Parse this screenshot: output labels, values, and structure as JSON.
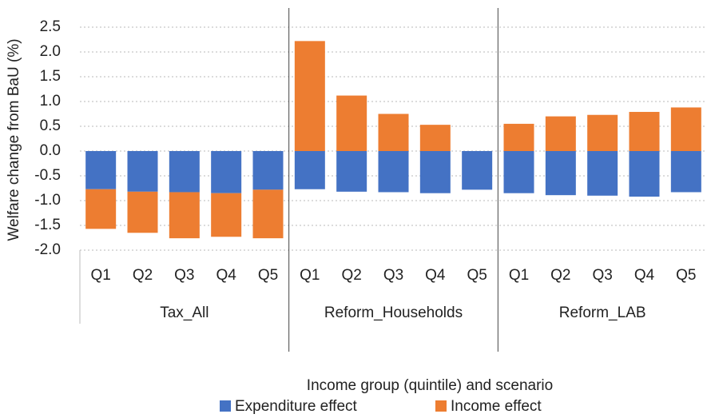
{
  "chart_data": {
    "type": "stacked-bar",
    "y_label": "Welfare change  from BaU (%)",
    "x_label": "Income group (quintile) and scenario",
    "groups": [
      {
        "name": "Tax_All",
        "categories": [
          "Q1",
          "Q2",
          "Q3",
          "Q4",
          "Q5"
        ]
      },
      {
        "name": "Reform_Households",
        "categories": [
          "Q1",
          "Q2",
          "Q3",
          "Q4",
          "Q5"
        ]
      },
      {
        "name": "Reform_LAB",
        "categories": [
          "Q1",
          "Q2",
          "Q3",
          "Q4",
          "Q5"
        ]
      }
    ],
    "series": [
      {
        "name": "Expenditure effect",
        "color": "#4472c4",
        "values": [
          -0.77,
          -0.82,
          -0.83,
          -0.85,
          -0.78,
          -0.77,
          -0.82,
          -0.83,
          -0.85,
          -0.78,
          -0.85,
          -0.89,
          -0.9,
          -0.92,
          -0.83
        ]
      },
      {
        "name": "Income effect",
        "color": "#ed7d31",
        "values": [
          -0.8,
          -0.83,
          -0.93,
          -0.88,
          -0.98,
          2.22,
          1.12,
          0.75,
          0.53,
          0,
          0.55,
          0.7,
          0.73,
          0.79,
          0.88
        ]
      }
    ],
    "ylim": [
      -2,
      2.5
    ],
    "yticks": [
      {
        "value": -2,
        "label": "-2.0"
      },
      -1.5,
      {
        "value": -1,
        "label": "-1.0"
      },
      -0.5,
      {
        "value": 0,
        "label": "0.0"
      },
      0.5,
      {
        "value": 1,
        "label": "1.0"
      },
      1.5,
      {
        "value": 2,
        "label": "2.0"
      },
      2.5
    ],
    "grid": true
  }
}
